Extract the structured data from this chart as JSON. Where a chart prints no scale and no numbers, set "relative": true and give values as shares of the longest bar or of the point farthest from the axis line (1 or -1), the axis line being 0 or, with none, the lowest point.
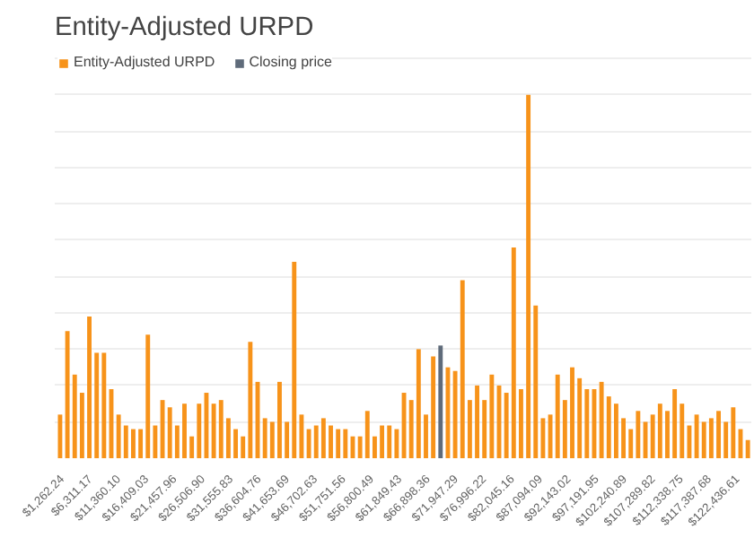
{
  "chart_data": {
    "type": "bar",
    "title": "Entity-Adjusted URPD",
    "relative": true,
    "grid": "y",
    "legend": "top left",
    "xlim": [
      -200,
      124800
    ],
    "xticks": [
      {
        "value": 1262.24,
        "label": "$1,262.24"
      },
      {
        "value": 6311.17,
        "label": "$6,311.17"
      },
      {
        "value": 11360.1,
        "label": "$11,360.10"
      },
      {
        "value": 16409.03,
        "label": "$16,409.03"
      },
      {
        "value": 21457.96,
        "label": "$21,457.96"
      },
      {
        "value": 26506.9,
        "label": "$26,506.90"
      },
      {
        "value": 31555.83,
        "label": "$31,555.83"
      },
      {
        "value": 36604.76,
        "label": "$36,604.76"
      },
      {
        "value": 41653.69,
        "label": "$41,653.69"
      },
      {
        "value": 46702.63,
        "label": "$46,702.63"
      },
      {
        "value": 51751.56,
        "label": "$51,751.56"
      },
      {
        "value": 56800.49,
        "label": "$56,800.49"
      },
      {
        "value": 61849.43,
        "label": "$61,849.43"
      },
      {
        "value": 66898.36,
        "label": "$66,898.36"
      },
      {
        "value": 71947.29,
        "label": "$71,947.29"
      },
      {
        "value": 76996.22,
        "label": "$76,996.22"
      },
      {
        "value": 82045.16,
        "label": "$82,045.16"
      },
      {
        "value": 87094.09,
        "label": "$87,094.09"
      },
      {
        "value": 92143.02,
        "label": "$92,143.02"
      },
      {
        "value": 97191.95,
        "label": "$97,191.95"
      },
      {
        "value": 102240.89,
        "label": "$102,240.89"
      },
      {
        "value": 107289.82,
        "label": "$107,289.82"
      },
      {
        "value": 112338.75,
        "label": "$112,338.75"
      },
      {
        "value": 117387.68,
        "label": "$117,387.68"
      },
      {
        "value": 122436.61,
        "label": "$122,436.61"
      }
    ],
    "x": [
      756,
      2069,
      3382,
      4695,
      6008,
      7321,
      8634,
      9947,
      11260,
      12573,
      13886,
      15199,
      16512,
      17825,
      19138,
      20451,
      21764,
      23077,
      24390,
      25703,
      27016,
      28329,
      29642,
      30955,
      32268,
      33581,
      34894,
      36207,
      37520,
      38833,
      40146,
      41459,
      42772,
      44085,
      45398,
      46711,
      48024,
      49337,
      50650,
      51963,
      53276,
      54589,
      55902,
      57215,
      58528,
      59841,
      61154,
      62467,
      63780,
      65093,
      66406,
      67719,
      69032,
      70345,
      71658,
      72971,
      74284,
      75597,
      76910,
      78223,
      79536,
      80849,
      82162,
      83475,
      84788,
      86101,
      87414,
      88727,
      90040,
      91353,
      92666,
      93979,
      95292,
      96605,
      97918,
      99231,
      100544,
      101857,
      103170,
      104483,
      105796,
      107109,
      108422,
      109735,
      111048,
      112361,
      113674,
      114987,
      116300,
      117613,
      118926,
      120239,
      121552,
      122865,
      124178
    ],
    "series": [
      {
        "name": "Entity-Adjusted URPD",
        "color": "#f7931a",
        "values": [
          0.12,
          0.35,
          0.23,
          0.18,
          0.39,
          0.29,
          0.29,
          0.19,
          0.12,
          0.09,
          0.08,
          0.08,
          0.34,
          0.09,
          0.16,
          0.14,
          0.09,
          0.15,
          0.06,
          0.15,
          0.18,
          0.15,
          0.16,
          0.11,
          0.08,
          0.06,
          0.32,
          0.21,
          0.11,
          0.1,
          0.21,
          0.1,
          0.54,
          0.12,
          0.08,
          0.09,
          0.11,
          0.09,
          0.08,
          0.08,
          0.06,
          0.06,
          0.13,
          0.06,
          0.09,
          0.09,
          0.08,
          0.18,
          0.16,
          0.3,
          0.12,
          0.28,
          null,
          0.25,
          0.24,
          0.49,
          0.16,
          0.2,
          0.16,
          0.23,
          0.2,
          0.18,
          0.58,
          0.19,
          1,
          0.42,
          0.11,
          0.12,
          0.23,
          0.16,
          0.25,
          0.22,
          0.19,
          0.19,
          0.21,
          0.17,
          0.15,
          0.11,
          0.08,
          0.13,
          0.1,
          0.12,
          0.15,
          0.13,
          0.19,
          0.15,
          0.09,
          0.12,
          0.1,
          0.11,
          0.13,
          0.1,
          0.14,
          0.08,
          0.05
        ]
      },
      {
        "name": "Closing price",
        "color": "#5f6b7a",
        "values": [
          null,
          null,
          null,
          null,
          null,
          null,
          null,
          null,
          null,
          null,
          null,
          null,
          null,
          null,
          null,
          null,
          null,
          null,
          null,
          null,
          null,
          null,
          null,
          null,
          null,
          null,
          null,
          null,
          null,
          null,
          null,
          null,
          null,
          null,
          null,
          null,
          null,
          null,
          null,
          null,
          null,
          null,
          null,
          null,
          null,
          null,
          null,
          null,
          null,
          null,
          null,
          null,
          0.31,
          null,
          null,
          null,
          null,
          null,
          null,
          null,
          null,
          null,
          null,
          null,
          null,
          null,
          null,
          null,
          null,
          null,
          null,
          null,
          null,
          null,
          null,
          null,
          null,
          null,
          null,
          null,
          null,
          null,
          null,
          null,
          null,
          null,
          null,
          null,
          null,
          null,
          null,
          null,
          null,
          null,
          null
        ]
      }
    ]
  }
}
